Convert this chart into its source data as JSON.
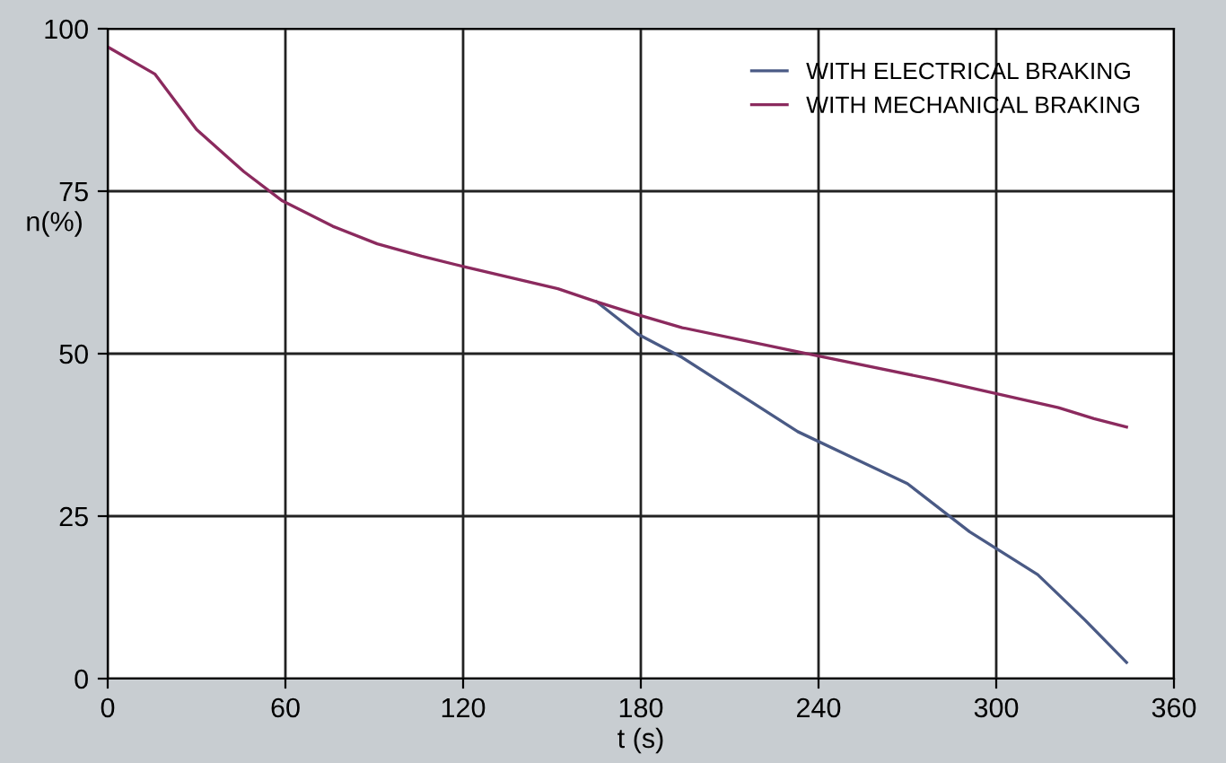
{
  "chart_data": {
    "type": "line",
    "xlabel": "t (s)",
    "ylabel": "n(%)",
    "xlim": [
      0,
      360
    ],
    "xticks": [
      0,
      60,
      120,
      180,
      240,
      300,
      360
    ],
    "ylim": [
      0,
      100
    ],
    "yticks": [
      0,
      25,
      50,
      75,
      100
    ],
    "grid": true,
    "legend": "top right",
    "line_style": "solid",
    "marker": "none",
    "series": [
      {
        "name": "WITH ELECTRICAL BRAKING",
        "color": "#4a5a85",
        "x": [
          165,
          179,
          194,
          233,
          270,
          291,
          314,
          330,
          344
        ],
        "values": [
          58,
          53,
          49.4,
          38,
          30,
          22.6,
          16,
          9,
          2.5
        ]
      },
      {
        "name": "WITH MECHANICAL BRAKING",
        "color": "#8b2a5e",
        "x": [
          0,
          16,
          30,
          46,
          59,
          76,
          91,
          106,
          121,
          152,
          165,
          179,
          194,
          233,
          279,
          321,
          333,
          344
        ],
        "values": [
          97.2,
          93,
          84.5,
          78,
          73.5,
          69.6,
          66.9,
          65,
          63.3,
          60,
          58,
          56,
          54,
          50.3,
          46,
          41.7,
          40,
          38.7
        ]
      }
    ]
  }
}
